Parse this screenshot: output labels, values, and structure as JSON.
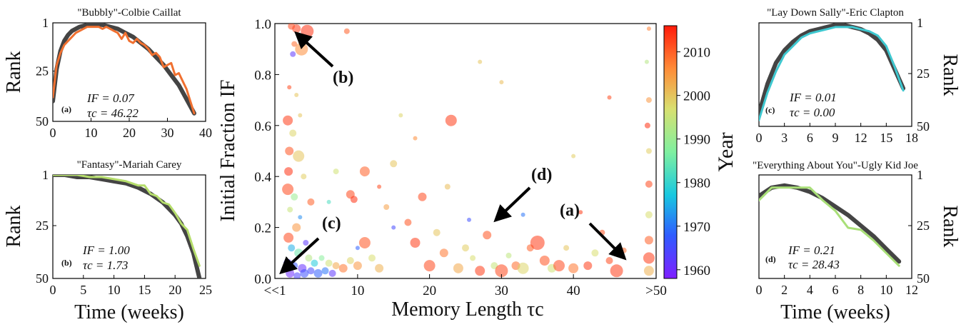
{
  "chart_data": [
    {
      "id": "a",
      "type": "line",
      "title": "\"Bubbly\"-Colbie Caillat",
      "xlabel": "",
      "ylabel": "Rank",
      "xlim": [
        0,
        40
      ],
      "ylim": [
        1,
        50
      ],
      "y_inverted": true,
      "xticks": [
        "0",
        "10",
        "20",
        "30",
        "40"
      ],
      "yticks": [
        "1",
        "25",
        "50"
      ],
      "panel_label": "(a)",
      "if_text": "IF = 0.07",
      "tau_text": "τc = 46.22",
      "colors": {
        "data": "#f07030",
        "fit": "#444444"
      },
      "series": [
        {
          "x": [
            0,
            1,
            2,
            3,
            4,
            5,
            6,
            7,
            8,
            9,
            10,
            11,
            12,
            13,
            14,
            15,
            16,
            17,
            18,
            19,
            20,
            21,
            22,
            23,
            24,
            25,
            26,
            27,
            28,
            29,
            30,
            31,
            32,
            33,
            34,
            35,
            36,
            37
          ],
          "values": [
            38,
            22,
            16,
            12,
            10,
            8,
            6,
            5,
            4,
            3,
            3,
            3,
            3,
            4,
            3,
            4,
            5,
            6,
            9,
            6,
            10,
            11,
            9,
            11,
            12,
            14,
            17,
            16,
            18,
            23,
            22,
            21,
            27,
            26,
            30,
            34,
            40,
            46
          ]
        },
        {
          "x": [
            0,
            1,
            2,
            3,
            4,
            5,
            7,
            9,
            11,
            13,
            15,
            17,
            19,
            21,
            23,
            25,
            27,
            29,
            31,
            33,
            35,
            37
          ],
          "values": [
            40,
            24,
            15,
            10,
            7,
            5,
            3,
            2,
            2,
            2,
            3,
            4,
            6,
            8,
            11,
            14,
            18,
            22,
            27,
            32,
            39,
            46
          ]
        }
      ]
    },
    {
      "id": "b",
      "type": "line",
      "title": "\"Fantasy\"-Mariah Carey",
      "xlabel": "Time (weeks)",
      "ylabel": "Rank",
      "xlim": [
        0,
        25
      ],
      "ylim": [
        1,
        50
      ],
      "y_inverted": true,
      "xticks": [
        "0",
        "5",
        "10",
        "15",
        "20",
        "25"
      ],
      "yticks": [
        "1",
        "25",
        "50"
      ],
      "panel_label": "(b)",
      "if_text": "IF = 1.00",
      "tau_text": "τc = 1.73",
      "colors": {
        "data": "#b5dd6b",
        "fit": "#444444"
      },
      "series": [
        {
          "x": [
            0,
            2,
            4,
            6,
            8,
            10,
            12,
            14,
            15,
            16,
            17,
            18,
            19,
            20,
            21,
            22,
            23,
            24
          ],
          "values": [
            1,
            1,
            1,
            2,
            2,
            3,
            4,
            6,
            6,
            10,
            11,
            14,
            15,
            19,
            24,
            27,
            36,
            44
          ]
        },
        {
          "x": [
            0,
            2,
            4,
            6,
            8,
            10,
            12,
            14,
            16,
            18,
            20,
            21,
            22,
            23,
            24
          ],
          "values": [
            1,
            1,
            2,
            2,
            3,
            4,
            5,
            7,
            10,
            14,
            20,
            24,
            30,
            38,
            50
          ]
        }
      ]
    },
    {
      "id": "main",
      "type": "scatter",
      "title": "",
      "xlabel": "Memory Length τc",
      "ylabel": "Initial Fraction IF",
      "xlim": [
        -1.5,
        51.5
      ],
      "ylim": [
        0,
        1.0
      ],
      "xticks": [
        "<<1",
        "10",
        "20",
        "30",
        "40",
        ">50"
      ],
      "yticks": [
        "0.0",
        "0.2",
        "0.4",
        "0.6",
        "0.8",
        "1.0"
      ],
      "colorbar": {
        "label": "Year",
        "range": [
          1958,
          2016
        ],
        "ticks": [
          "1960",
          "1970",
          "1980",
          "1990",
          "2000",
          "2010"
        ]
      },
      "annotations": [
        "(a)",
        "(b)",
        "(c)",
        "(d)"
      ],
      "points": [
        {
          "x": 1.5,
          "y": 0.98,
          "year": 2013,
          "s": 6
        },
        {
          "x": 3,
          "y": 0.97,
          "year": 2014,
          "s": 9
        },
        {
          "x": 0.8,
          "y": 0.99,
          "year": 2012,
          "s": 5
        },
        {
          "x": 1.2,
          "y": 0.92,
          "year": 2009,
          "s": 4
        },
        {
          "x": 2.2,
          "y": 0.9,
          "year": 2006,
          "s": 9
        },
        {
          "x": 1,
          "y": 0.88,
          "year": 1962,
          "s": 4
        },
        {
          "x": 8.5,
          "y": 0.97,
          "year": 2010,
          "s": 4
        },
        {
          "x": 0.5,
          "y": 0.75,
          "year": 2012,
          "s": 3
        },
        {
          "x": 1.5,
          "y": 0.72,
          "year": 2000,
          "s": 3
        },
        {
          "x": 0.3,
          "y": 0.62,
          "year": 2013,
          "s": 7
        },
        {
          "x": 1,
          "y": 0.57,
          "year": 1998,
          "s": 5
        },
        {
          "x": 0.5,
          "y": 0.5,
          "year": 2011,
          "s": 6
        },
        {
          "x": 1.8,
          "y": 0.48,
          "year": 2000,
          "s": 8
        },
        {
          "x": 0.4,
          "y": 0.42,
          "year": 2014,
          "s": 6
        },
        {
          "x": 2.5,
          "y": 0.4,
          "year": 1999,
          "s": 4
        },
        {
          "x": 0.3,
          "y": 0.35,
          "year": 2012,
          "s": 8
        },
        {
          "x": 1.2,
          "y": 0.32,
          "year": 1990,
          "s": 5
        },
        {
          "x": 3.5,
          "y": 0.3,
          "year": 2010,
          "s": 5
        },
        {
          "x": 0.6,
          "y": 0.27,
          "year": 1995,
          "s": 4
        },
        {
          "x": 2,
          "y": 0.24,
          "year": 1972,
          "s": 3
        },
        {
          "x": 1.5,
          "y": 0.2,
          "year": 2005,
          "s": 6
        },
        {
          "x": 0.4,
          "y": 0.16,
          "year": 2012,
          "s": 7
        },
        {
          "x": 2.8,
          "y": 0.14,
          "year": 1962,
          "s": 4
        },
        {
          "x": 0.8,
          "y": 0.12,
          "year": 1975,
          "s": 5
        },
        {
          "x": 1.8,
          "y": 0.1,
          "year": 1985,
          "s": 6
        },
        {
          "x": 3.2,
          "y": 0.08,
          "year": 1993,
          "s": 5
        },
        {
          "x": 0.3,
          "y": 0.06,
          "year": 1963,
          "s": 6
        },
        {
          "x": 1.2,
          "y": 0.05,
          "year": 1967,
          "s": 5
        },
        {
          "x": 2.3,
          "y": 0.04,
          "year": 1961,
          "s": 6
        },
        {
          "x": 3.5,
          "y": 0.03,
          "year": 1965,
          "s": 5
        },
        {
          "x": 4.5,
          "y": 0.02,
          "year": 1968,
          "s": 6
        },
        {
          "x": 5.5,
          "y": 0.03,
          "year": 1970,
          "s": 5
        },
        {
          "x": 6.5,
          "y": 0.02,
          "year": 1962,
          "s": 5
        },
        {
          "x": 0.6,
          "y": 0.02,
          "year": 1960,
          "s": 6
        },
        {
          "x": 1.6,
          "y": 0.01,
          "year": 1964,
          "s": 5
        },
        {
          "x": 2.6,
          "y": 0.02,
          "year": 1966,
          "s": 6
        },
        {
          "x": 4,
          "y": 0.06,
          "year": 1978,
          "s": 5
        },
        {
          "x": 5,
          "y": 0.08,
          "year": 1988,
          "s": 4
        },
        {
          "x": 6,
          "y": 0.06,
          "year": 1996,
          "s": 5
        },
        {
          "x": 7,
          "y": 0.05,
          "year": 2003,
          "s": 5
        },
        {
          "x": 8,
          "y": 0.04,
          "year": 2008,
          "s": 6
        },
        {
          "x": 9,
          "y": 0.07,
          "year": 1998,
          "s": 5
        },
        {
          "x": 10,
          "y": 0.05,
          "year": 2005,
          "s": 6
        },
        {
          "x": 11,
          "y": 0.14,
          "year": 2011,
          "s": 8
        },
        {
          "x": 12,
          "y": 0.08,
          "year": 1997,
          "s": 5
        },
        {
          "x": 13,
          "y": 0.04,
          "year": 2002,
          "s": 6
        },
        {
          "x": 9,
          "y": 0.33,
          "year": 2012,
          "s": 6
        },
        {
          "x": 9.5,
          "y": 0.31,
          "year": 2014,
          "s": 5
        },
        {
          "x": 10,
          "y": 0.12,
          "year": 1968,
          "s": 3
        },
        {
          "x": 11,
          "y": 0.42,
          "year": 2010,
          "s": 7
        },
        {
          "x": 14,
          "y": 0.28,
          "year": 2004,
          "s": 4
        },
        {
          "x": 15,
          "y": 0.45,
          "year": 2000,
          "s": 5
        },
        {
          "x": 16,
          "y": 0.64,
          "year": 1998,
          "s": 3
        },
        {
          "x": 17,
          "y": 0.22,
          "year": 2011,
          "s": 5
        },
        {
          "x": 19,
          "y": 0.32,
          "year": 2012,
          "s": 6
        },
        {
          "x": 18,
          "y": 0.14,
          "year": 2013,
          "s": 7
        },
        {
          "x": 20,
          "y": 0.05,
          "year": 2012,
          "s": 8
        },
        {
          "x": 21,
          "y": 0.18,
          "year": 2000,
          "s": 5
        },
        {
          "x": 22,
          "y": 0.1,
          "year": 2008,
          "s": 6
        },
        {
          "x": 23,
          "y": 0.62,
          "year": 2013,
          "s": 8
        },
        {
          "x": 22.5,
          "y": 0.36,
          "year": 2001,
          "s": 4
        },
        {
          "x": 24,
          "y": 0.04,
          "year": 2003,
          "s": 7
        },
        {
          "x": 25,
          "y": 0.12,
          "year": 1999,
          "s": 5
        },
        {
          "x": 26,
          "y": 0.08,
          "year": 1997,
          "s": 4
        },
        {
          "x": 27,
          "y": 0.03,
          "year": 2013,
          "s": 7
        },
        {
          "x": 28,
          "y": 0.17,
          "year": 2011,
          "s": 6
        },
        {
          "x": 29,
          "y": 0.05,
          "year": 1995,
          "s": 5
        },
        {
          "x": 30,
          "y": 0.03,
          "year": 2012,
          "s": 9
        },
        {
          "x": 31,
          "y": 0.09,
          "year": 1994,
          "s": 4
        },
        {
          "x": 32,
          "y": 0.05,
          "year": 2009,
          "s": 6
        },
        {
          "x": 33,
          "y": 0.04,
          "year": 1998,
          "s": 8
        },
        {
          "x": 34,
          "y": 0.12,
          "year": 2010,
          "s": 5
        },
        {
          "x": 35,
          "y": 0.14,
          "year": 2013,
          "s": 10
        },
        {
          "x": 36,
          "y": 0.07,
          "year": 2011,
          "s": 7
        },
        {
          "x": 37,
          "y": 0.04,
          "year": 1996,
          "s": 6
        },
        {
          "x": 38,
          "y": 0.05,
          "year": 2012,
          "s": 8
        },
        {
          "x": 39,
          "y": 0.12,
          "year": 2000,
          "s": 4
        },
        {
          "x": 40,
          "y": 0.04,
          "year": 2008,
          "s": 7
        },
        {
          "x": 42,
          "y": 0.05,
          "year": 2013,
          "s": 6
        },
        {
          "x": 43,
          "y": 0.1,
          "year": 1997,
          "s": 5
        },
        {
          "x": 44,
          "y": 0.18,
          "year": 2011,
          "s": 4
        },
        {
          "x": 45,
          "y": 0.07,
          "year": 2012,
          "s": 5
        },
        {
          "x": 46,
          "y": 0.03,
          "year": 2013,
          "s": 9
        },
        {
          "x": 47,
          "y": 0.11,
          "year": 2009,
          "s": 4
        },
        {
          "x": 41,
          "y": 0.26,
          "year": 2013,
          "s": 3
        },
        {
          "x": 45,
          "y": 0.71,
          "year": 2012,
          "s": 3
        },
        {
          "x": 40,
          "y": 0.48,
          "year": 1999,
          "s": 3
        },
        {
          "x": 30,
          "y": 0.77,
          "year": 2001,
          "s": 3
        },
        {
          "x": 27,
          "y": 0.85,
          "year": 2000,
          "s": 3
        },
        {
          "x": 18,
          "y": 0.55,
          "year": 2006,
          "s": 3
        },
        {
          "x": 50.5,
          "y": 0.98,
          "year": 2007,
          "s": 3
        },
        {
          "x": 50.5,
          "y": 0.7,
          "year": 2005,
          "s": 4
        },
        {
          "x": 50.5,
          "y": 0.5,
          "year": 1999,
          "s": 4
        },
        {
          "x": 50.5,
          "y": 0.37,
          "year": 2012,
          "s": 5
        },
        {
          "x": 50.5,
          "y": 0.25,
          "year": 1997,
          "s": 5
        },
        {
          "x": 50.5,
          "y": 0.15,
          "year": 2010,
          "s": 6
        },
        {
          "x": 50.5,
          "y": 0.08,
          "year": 2013,
          "s": 8
        },
        {
          "x": 50.5,
          "y": 0.03,
          "year": 2002,
          "s": 7
        },
        {
          "x": 50.2,
          "y": 0.85,
          "year": 1993,
          "s": 3
        },
        {
          "x": 50.3,
          "y": 0.6,
          "year": 2014,
          "s": 4
        },
        {
          "x": 2,
          "y": 0.64,
          "year": 2000,
          "s": 3
        },
        {
          "x": 6,
          "y": 0.3,
          "year": 1982,
          "s": 3
        },
        {
          "x": 13,
          "y": 0.36,
          "year": 2012,
          "s": 3
        },
        {
          "x": 7,
          "y": 0.42,
          "year": 1996,
          "s": 4
        },
        {
          "x": 25.5,
          "y": 0.23,
          "year": 1966,
          "s": 3
        },
        {
          "x": 33,
          "y": 0.25,
          "year": 1970,
          "s": 3
        },
        {
          "x": 15,
          "y": 0.2,
          "year": 1965,
          "s": 3
        }
      ]
    },
    {
      "id": "c",
      "type": "line",
      "title": "\"Lay Down Sally\"-Eric Clapton",
      "xlabel": "",
      "ylabel": "Rank",
      "xlim": [
        0,
        18
      ],
      "ylim": [
        1,
        50
      ],
      "y_inverted": true,
      "xticks": [
        "0",
        "3",
        "6",
        "9",
        "12",
        "15",
        "18"
      ],
      "yticks": [
        "1",
        "25",
        "50"
      ],
      "panel_label": "(c)",
      "if_text": "IF = 0.01",
      "tau_text": "τc = 0.00",
      "colors": {
        "data": "#3ec8d0",
        "fit": "#444444"
      },
      "series": [
        {
          "x": [
            0,
            1,
            2,
            3,
            4,
            5,
            6,
            7,
            8,
            9,
            10,
            11,
            12,
            13,
            14,
            15,
            16,
            17
          ],
          "values": [
            47,
            34,
            24,
            16,
            12,
            8,
            6,
            5,
            4,
            3,
            3,
            3,
            4,
            5,
            7,
            12,
            22,
            33
          ]
        },
        {
          "x": [
            0,
            1,
            2,
            3,
            4,
            5,
            6,
            7,
            8,
            9,
            10,
            11,
            12,
            13,
            14,
            15,
            16,
            17
          ],
          "values": [
            44,
            30,
            20,
            14,
            10,
            7,
            5,
            4,
            3,
            2,
            2,
            3,
            4,
            6,
            9,
            14,
            23,
            32
          ]
        }
      ]
    },
    {
      "id": "d",
      "type": "line",
      "title": "\"Everything About You\"-Ugly Kid Joe",
      "xlabel": "Time (weeks)",
      "ylabel": "Rank",
      "xlim": [
        0,
        12
      ],
      "ylim": [
        1,
        50
      ],
      "y_inverted": true,
      "xticks": [
        "0",
        "2",
        "4",
        "6",
        "8",
        "10",
        "12"
      ],
      "yticks": [
        "1",
        "25",
        "50"
      ],
      "panel_label": "(d)",
      "if_text": "IF = 0.21",
      "tau_text": "τc = 28.43",
      "colors": {
        "data": "#a9df78",
        "fit": "#444444"
      },
      "series": [
        {
          "x": [
            0,
            1,
            2,
            3,
            4,
            5,
            6,
            7,
            8,
            9,
            10,
            11
          ],
          "values": [
            13,
            7,
            7,
            7,
            7,
            13,
            18,
            26,
            27,
            32,
            38,
            44
          ]
        },
        {
          "x": [
            0,
            1,
            2,
            3,
            4,
            5,
            6,
            7,
            8,
            9,
            10,
            11
          ],
          "values": [
            11,
            7,
            6,
            7,
            9,
            12,
            16,
            20,
            25,
            30,
            36,
            42
          ]
        }
      ]
    }
  ]
}
